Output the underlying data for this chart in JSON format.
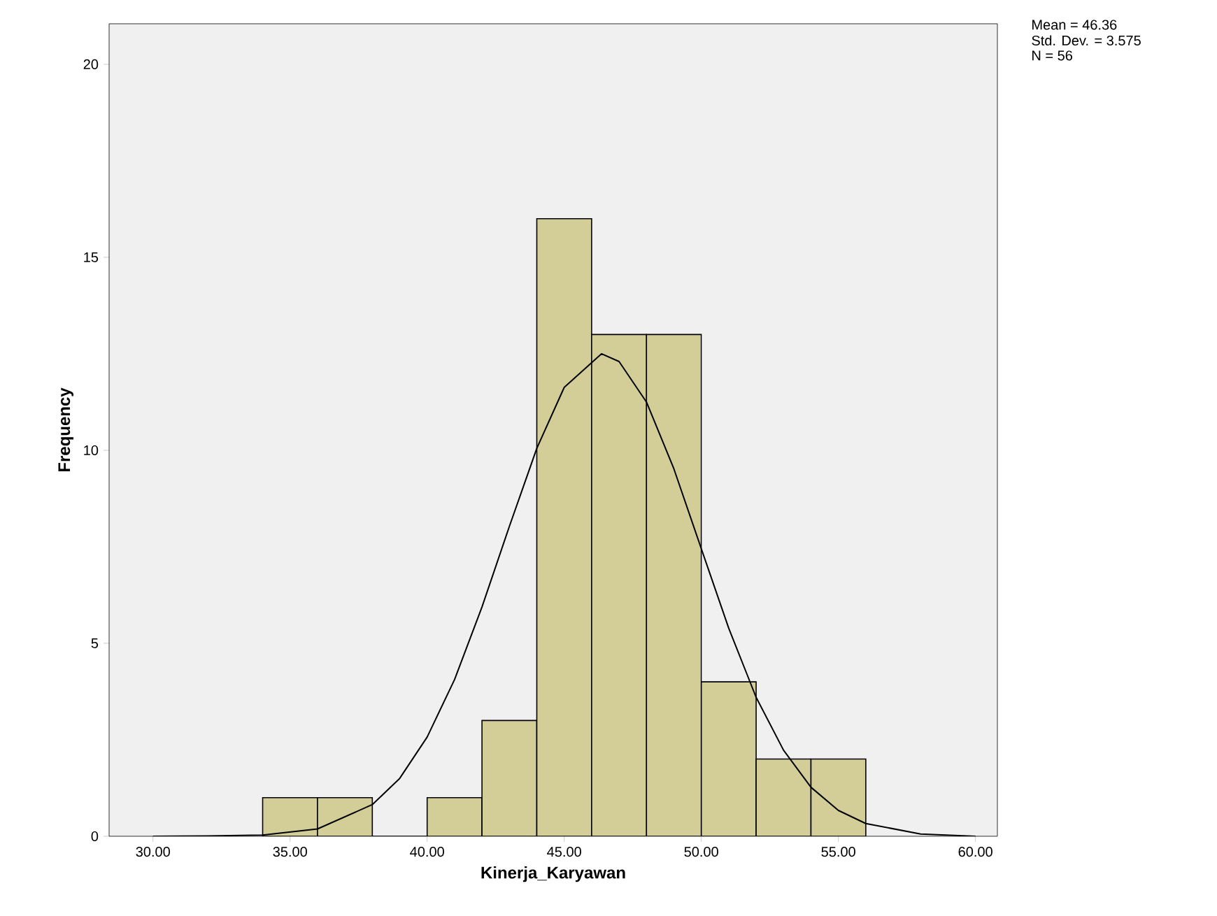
{
  "chart_data": {
    "type": "histogram",
    "xlabel": "Kinerja_Karyawan",
    "ylabel": "Frequency",
    "bins": [
      34,
      36,
      38,
      40,
      42,
      44,
      46,
      48,
      50,
      52,
      54,
      56
    ],
    "values": [
      1,
      1,
      0,
      1,
      3,
      16,
      13,
      13,
      4,
      2,
      2
    ],
    "color": "#d3ce97",
    "xlim": [
      28.4,
      60.8
    ],
    "ylim": [
      0,
      21.05
    ],
    "xticks": [
      {
        "value": 30,
        "label": "30.00"
      },
      {
        "value": 35,
        "label": "35.00"
      },
      {
        "value": 40,
        "label": "40.00"
      },
      {
        "value": 45,
        "label": "45.00"
      },
      {
        "value": 50,
        "label": "50.00"
      },
      {
        "value": 55,
        "label": "55.00"
      },
      {
        "value": 60,
        "label": "60.00"
      }
    ],
    "yticks": [
      0,
      5,
      10,
      15,
      20
    ],
    "series": [
      {
        "type": "line",
        "color": "#000000",
        "x": [
          30,
          32,
          34,
          36,
          38,
          39,
          40,
          41,
          42,
          43,
          44,
          45,
          46.36,
          47,
          48,
          49,
          50,
          51,
          52,
          53,
          54,
          55,
          56,
          58,
          60
        ],
        "values": [
          0.0,
          0.01,
          0.03,
          0.19,
          0.82,
          1.5,
          2.57,
          4.06,
          5.94,
          8.03,
          10.05,
          11.63,
          12.5,
          12.3,
          11.25,
          9.52,
          7.45,
          5.39,
          3.6,
          2.23,
          1.27,
          0.67,
          0.33,
          0.06,
          0.0
        ]
      }
    ],
    "annotations": [
      "Mean = 46.36",
      "Std. Dev. = 3.575",
      "N = 56"
    ]
  }
}
